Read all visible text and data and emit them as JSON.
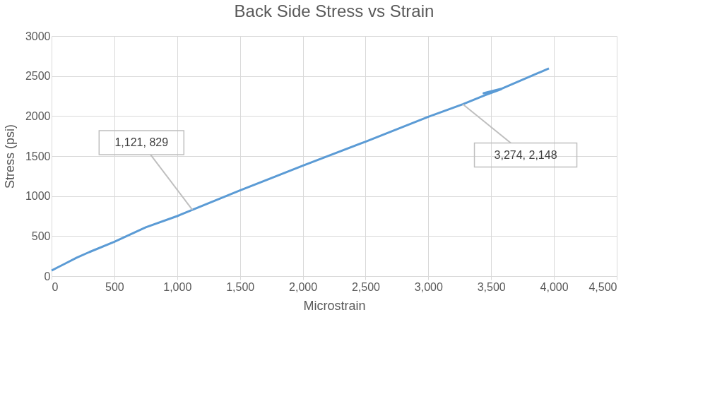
{
  "chart_data": {
    "type": "line",
    "title": "Back Side Stress vs Strain",
    "xlabel": "Microstrain",
    "ylabel": "Stress (psi)",
    "series": [
      {
        "color": "#5b9bd5",
        "x": [
          0,
          50,
          100,
          200,
          300,
          500,
          750,
          1000,
          1121,
          1500,
          2000,
          2500,
          3000,
          3274,
          3450,
          3580,
          3440,
          3580,
          3960
        ],
        "values": [
          70,
          110,
          150,
          230,
          300,
          430,
          610,
          750,
          829,
          1070,
          1380,
          1680,
          1990,
          2148,
          2260,
          2335,
          2285,
          2340,
          2595
        ]
      }
    ],
    "xlim": [
      0,
      4500
    ],
    "xticks": [
      0,
      500,
      {
        "value": 1000,
        "label": "1,000"
      },
      {
        "value": 1500,
        "label": "1,500"
      },
      {
        "value": 2000,
        "label": "2,000"
      },
      {
        "value": 2500,
        "label": "2,500"
      },
      {
        "value": 3000,
        "label": "3,000"
      },
      {
        "value": 3500,
        "label": "3,500"
      },
      {
        "value": 4000,
        "label": "4,000"
      },
      {
        "value": 4500,
        "label": "4,500"
      }
    ],
    "ylim": [
      0,
      3000
    ],
    "yticks": [
      0,
      500,
      1000,
      1500,
      2000,
      2500,
      3000
    ],
    "grid": true,
    "line_style": "solid",
    "marker": "none",
    "annotations": [
      {
        "text": "1,121, 829",
        "x": 1121,
        "y": 829
      },
      {
        "text": "3,274, 2,148",
        "x": 3274,
        "y": 2148
      }
    ]
  }
}
